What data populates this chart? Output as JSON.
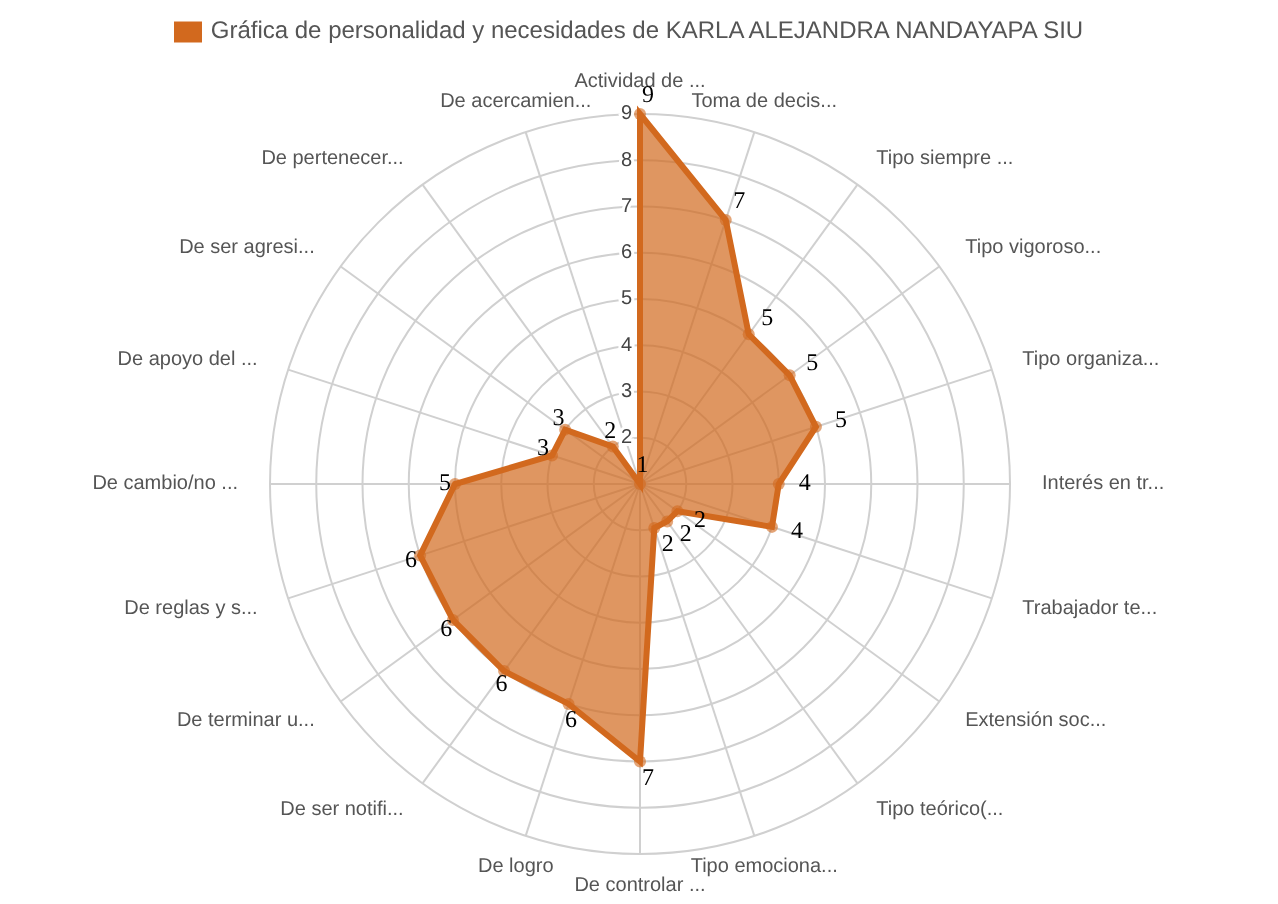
{
  "chart_data": {
    "type": "radar",
    "categories": [
      "Actividad de ...",
      "Toma de decis...",
      "Tipo siempre ...",
      "Tipo vigoroso...",
      "Tipo organiza...",
      "Interés en tr...",
      "Trabajador te...",
      "Extensión soc...",
      "Tipo teórico(...",
      "Tipo emociona...",
      "De controlar ...",
      "De logro",
      "De ser notifi...",
      "De terminar u...",
      "De reglas y s...",
      "De cambio/no ...",
      "De apoyo del ...",
      "De ser agresi...",
      "De pertenecer...",
      "De acercamien..."
    ],
    "series": [
      {
        "name": "Gráfica de personalidad y necesidades de KARLA ALEJANDRA NANDAYAPA SIU",
        "color": "#d2691e",
        "values": [
          9,
          7,
          5,
          5,
          5,
          4,
          4,
          2,
          2,
          2,
          7,
          6,
          6,
          6,
          6,
          5,
          3,
          3,
          2,
          1
        ]
      }
    ],
    "ylim": [
      1,
      9
    ],
    "yticks": [
      2,
      3,
      4,
      5,
      6,
      7,
      8,
      9
    ],
    "grid": true,
    "legend": "top",
    "data_labels": true
  }
}
